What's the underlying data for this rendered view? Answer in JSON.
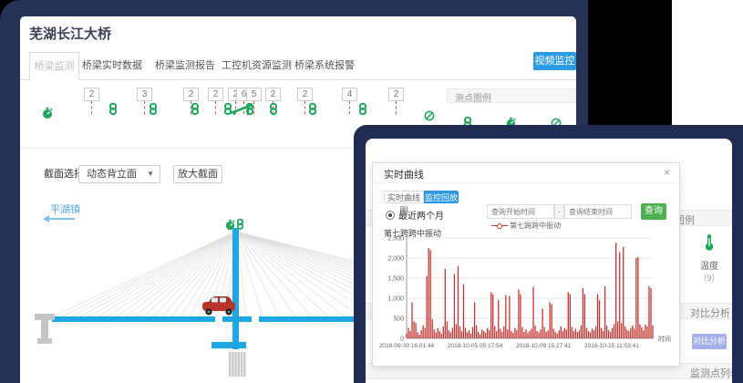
{
  "colors": {
    "navy_background": "#273356",
    "accent_blue": "#2a9ce7",
    "icon_green": "#1fa65a",
    "chart_red": "#c23531",
    "deck_blue": "#1ea7e5",
    "query_green": "#4caf50",
    "disabled_button": "#a4b0ea"
  },
  "window": {
    "title": "芜湖长江大桥",
    "tabs": [
      "桥梁监测",
      "桥梁实时数据",
      "桥梁监测报告",
      "工控机资源监测",
      "桥梁系统报警"
    ],
    "video_button": "视频监控"
  },
  "sensor_strip": {
    "numbers": [
      "2",
      "3",
      "2",
      "2",
      "2",
      "6",
      "5",
      "2",
      "2",
      "4",
      "2"
    ],
    "lead_icon": "stopwatch-icon",
    "tail_icon": "no-entry-icon"
  },
  "legend_panel": {
    "title": "测点图例"
  },
  "controls": {
    "section_label": "截面选择：",
    "section_value": "动态背立面",
    "zoom_button": "放大截面",
    "direction_label": "平湖镇"
  },
  "right_panel": {
    "legend_title": "测点图例",
    "temp_label": "温度",
    "temp_count": "（9）",
    "compare_title": "对比分析",
    "compare_button": "对比分析",
    "list_title": "监测点列表"
  },
  "modal": {
    "title": "实时曲线",
    "close_label": "×",
    "tab_curve": "实时曲线图",
    "tab_playback": "监控回放",
    "radio_label": "最近两个月",
    "start_placeholder": "查询开始时间",
    "range_separator": "-",
    "end_placeholder": "查询结束时间",
    "query_button": "查询",
    "legend_label": "第七跨跨中振动"
  },
  "chart_data": {
    "type": "line",
    "title": "第七跨跨中振动",
    "xlabel": "时间",
    "ylabel": "",
    "ylim": [
      0,
      2500
    ],
    "grid": true,
    "legend_position": "top",
    "yticks": [
      0,
      500,
      1000,
      1500,
      2000,
      2500
    ],
    "ytick_labels": [
      "0",
      "500",
      "1,000",
      "1,500",
      "2,000",
      "2,500"
    ],
    "xtick_labels": [
      "2018-09-30 16:01:44",
      "2018-10-05 05:17:54",
      "2018-10-09 15:27:41",
      "2018-10-15 11:03:41"
    ],
    "series": [
      {
        "name": "第七跨跨中振动",
        "color": "#c23531",
        "values": [
          120,
          260,
          180,
          900,
          420,
          380,
          150,
          90,
          200,
          320,
          260,
          1550,
          2250,
          2200,
          480,
          220,
          150,
          260,
          180,
          120,
          300,
          1730,
          420,
          200,
          150,
          260,
          1600,
          350,
          1800,
          300,
          180,
          1350,
          260,
          150,
          200,
          120,
          280,
          900,
          320,
          160,
          100,
          220,
          180,
          140,
          260,
          200,
          1150,
          1100,
          300,
          180,
          950,
          240,
          160,
          300,
          1080,
          220,
          1050,
          180,
          140,
          260,
          200,
          1220,
          1100,
          280,
          160,
          220,
          130,
          180,
          240,
          1280,
          320,
          180,
          150,
          220,
          740,
          280,
          160,
          200,
          900,
          850,
          240,
          160,
          120,
          200,
          300,
          180,
          260,
          220,
          1150,
          1100,
          280,
          180,
          240,
          160,
          200,
          320,
          1250,
          1100,
          260,
          180,
          150,
          240,
          200,
          300,
          1100,
          950,
          260,
          180,
          1300,
          320,
          200,
          160,
          260,
          350,
          2380,
          420,
          2150,
          380,
          2280,
          300,
          220,
          180,
          260,
          320,
          240,
          2000,
          2020,
          350,
          280,
          200,
          340,
          300,
          1300,
          1250,
          320
        ]
      }
    ]
  }
}
